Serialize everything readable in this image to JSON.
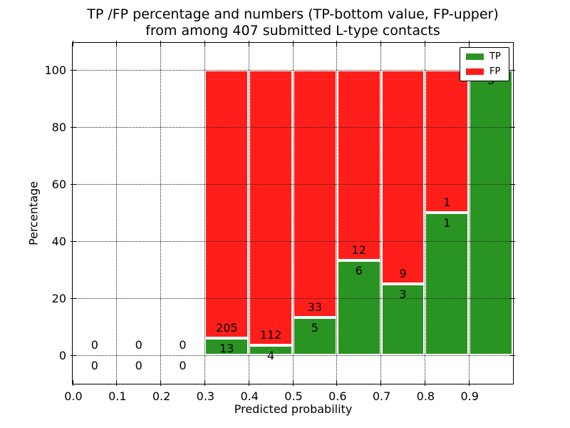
{
  "chart_data": {
    "type": "bar",
    "stacked": true,
    "title_line1": "TP /FP percentage and numbers (TP-bottom value, FP-upper)",
    "title_line2": "from among 407 submitted L-type contacts",
    "xlabel": "Predicted probability",
    "ylabel": "Percentage",
    "xlim": [
      0.0,
      1.0
    ],
    "ylim": [
      -10,
      110
    ],
    "grid": true,
    "x_tick_values": [
      0.0,
      0.1,
      0.2,
      0.3,
      0.4,
      0.5,
      0.6,
      0.7,
      0.8,
      0.9
    ],
    "x_tick_labels": [
      "0.0",
      "0.1",
      "0.2",
      "0.3",
      "0.4",
      "0.5",
      "0.6",
      "0.7",
      "0.8",
      "0.9"
    ],
    "y_tick_values": [
      0,
      20,
      40,
      60,
      80,
      100
    ],
    "y_tick_labels": [
      "0",
      "20",
      "40",
      "60",
      "80",
      "100"
    ],
    "legend": {
      "position": "upper right",
      "entries": [
        {
          "label": "TP",
          "color": "#2a9423"
        },
        {
          "label": "FP",
          "color": "#ff1e19"
        }
      ]
    },
    "bins": [
      {
        "x0": 0.0,
        "x1": 0.1,
        "tp_count": 0,
        "fp_count": 0,
        "tp_pct": 0.0,
        "fp_pct": 0.0,
        "tp_label": "0",
        "fp_label": "0"
      },
      {
        "x0": 0.1,
        "x1": 0.2,
        "tp_count": 0,
        "fp_count": 0,
        "tp_pct": 0.0,
        "fp_pct": 0.0,
        "tp_label": "0",
        "fp_label": "0"
      },
      {
        "x0": 0.2,
        "x1": 0.3,
        "tp_count": 0,
        "fp_count": 0,
        "tp_pct": 0.0,
        "fp_pct": 0.0,
        "tp_label": "0",
        "fp_label": "0"
      },
      {
        "x0": 0.3,
        "x1": 0.4,
        "tp_count": 13,
        "fp_count": 205,
        "tp_pct": 5.96,
        "fp_pct": 94.04,
        "tp_label": "13",
        "fp_label": "205"
      },
      {
        "x0": 0.4,
        "x1": 0.5,
        "tp_count": 4,
        "fp_count": 112,
        "tp_pct": 3.45,
        "fp_pct": 96.55,
        "tp_label": "4",
        "fp_label": "112"
      },
      {
        "x0": 0.5,
        "x1": 0.6,
        "tp_count": 5,
        "fp_count": 33,
        "tp_pct": 13.16,
        "fp_pct": 86.84,
        "tp_label": "5",
        "fp_label": "33"
      },
      {
        "x0": 0.6,
        "x1": 0.7,
        "tp_count": 6,
        "fp_count": 12,
        "tp_pct": 33.33,
        "fp_pct": 66.67,
        "tp_label": "6",
        "fp_label": "12"
      },
      {
        "x0": 0.7,
        "x1": 0.8,
        "tp_count": 3,
        "fp_count": 9,
        "tp_pct": 25.0,
        "fp_pct": 75.0,
        "tp_label": "3",
        "fp_label": "9"
      },
      {
        "x0": 0.8,
        "x1": 0.9,
        "tp_count": 1,
        "fp_count": 1,
        "tp_pct": 50.0,
        "fp_pct": 50.0,
        "tp_label": "1",
        "fp_label": "1"
      },
      {
        "x0": 0.9,
        "x1": 1.0,
        "tp_count": 3,
        "fp_count": 0,
        "tp_pct": 100.0,
        "fp_pct": 0.0,
        "tp_label": "3",
        "fp_label": ""
      }
    ]
  },
  "colors": {
    "tp": "#2a9423",
    "fp": "#ff1e19",
    "grid": "#222222",
    "frame": "#000000",
    "background": "#ffffff"
  }
}
